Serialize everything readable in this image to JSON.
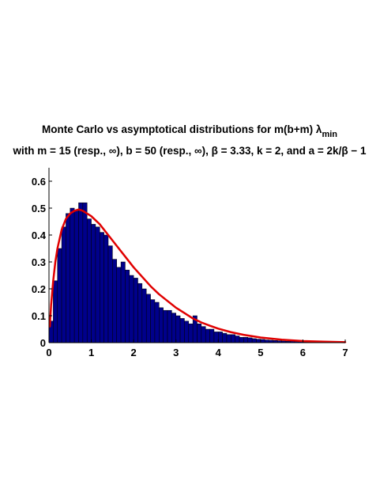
{
  "chart_data": {
    "type": "bar",
    "title_line1": "Monte Carlo vs asymptotical distributions for m(b+m) λ",
    "title_line1_sub": "min",
    "title_line2": "with m = 15 (resp., ∞), b = 50 (resp., ∞), β = 3.33, k = 2, and a = 2k/β − 1",
    "xlabel": "",
    "ylabel": "",
    "xlim": [
      0,
      7
    ],
    "ylim": [
      0,
      0.65
    ],
    "xticks": [
      0,
      1,
      2,
      3,
      4,
      5,
      6,
      7
    ],
    "yticks": [
      0,
      0.1,
      0.2,
      0.3,
      0.4,
      0.5,
      0.6
    ],
    "xtick_labels": [
      "0",
      "1",
      "2",
      "3",
      "4",
      "5",
      "6",
      "7"
    ],
    "ytick_labels": [
      "0",
      "0.1",
      "0.2",
      "0.3",
      "0.4",
      "0.5",
      "0.6"
    ],
    "grid": false,
    "bin_width": 0.1,
    "histogram": [
      0.08,
      0.23,
      0.35,
      0.43,
      0.48,
      0.5,
      0.49,
      0.52,
      0.52,
      0.46,
      0.44,
      0.43,
      0.41,
      0.4,
      0.36,
      0.31,
      0.28,
      0.3,
      0.27,
      0.25,
      0.24,
      0.22,
      0.2,
      0.18,
      0.16,
      0.15,
      0.13,
      0.12,
      0.12,
      0.11,
      0.1,
      0.09,
      0.08,
      0.07,
      0.1,
      0.07,
      0.06,
      0.05,
      0.05,
      0.04,
      0.04,
      0.035,
      0.03,
      0.03,
      0.025,
      0.02,
      0.02,
      0.018,
      0.015,
      0.013,
      0.012,
      0.01,
      0.009,
      0.008,
      0.007,
      0.006,
      0.005,
      0.005,
      0.004,
      0.004,
      0.003,
      0.003,
      0.002,
      0.002,
      0.002,
      0.001,
      0.001
    ],
    "curve": {
      "x": [
        0.02,
        0.05,
        0.1,
        0.15,
        0.2,
        0.3,
        0.4,
        0.5,
        0.6,
        0.7,
        0.8,
        0.9,
        1.0,
        1.1,
        1.2,
        1.4,
        1.6,
        1.8,
        2.0,
        2.2,
        2.4,
        2.6,
        2.8,
        3.0,
        3.2,
        3.4,
        3.6,
        3.8,
        4.0,
        4.3,
        4.6,
        5.0,
        5.5,
        6.0,
        6.5,
        7.0
      ],
      "y": [
        0.06,
        0.14,
        0.23,
        0.3,
        0.35,
        0.42,
        0.46,
        0.48,
        0.49,
        0.495,
        0.49,
        0.48,
        0.47,
        0.455,
        0.44,
        0.4,
        0.36,
        0.32,
        0.28,
        0.245,
        0.21,
        0.18,
        0.155,
        0.13,
        0.11,
        0.09,
        0.075,
        0.063,
        0.052,
        0.039,
        0.029,
        0.019,
        0.011,
        0.006,
        0.0035,
        0.002
      ]
    },
    "bar_color": "#00008B",
    "bar_edge_color": "#000000",
    "curve_color": "#E00000"
  }
}
